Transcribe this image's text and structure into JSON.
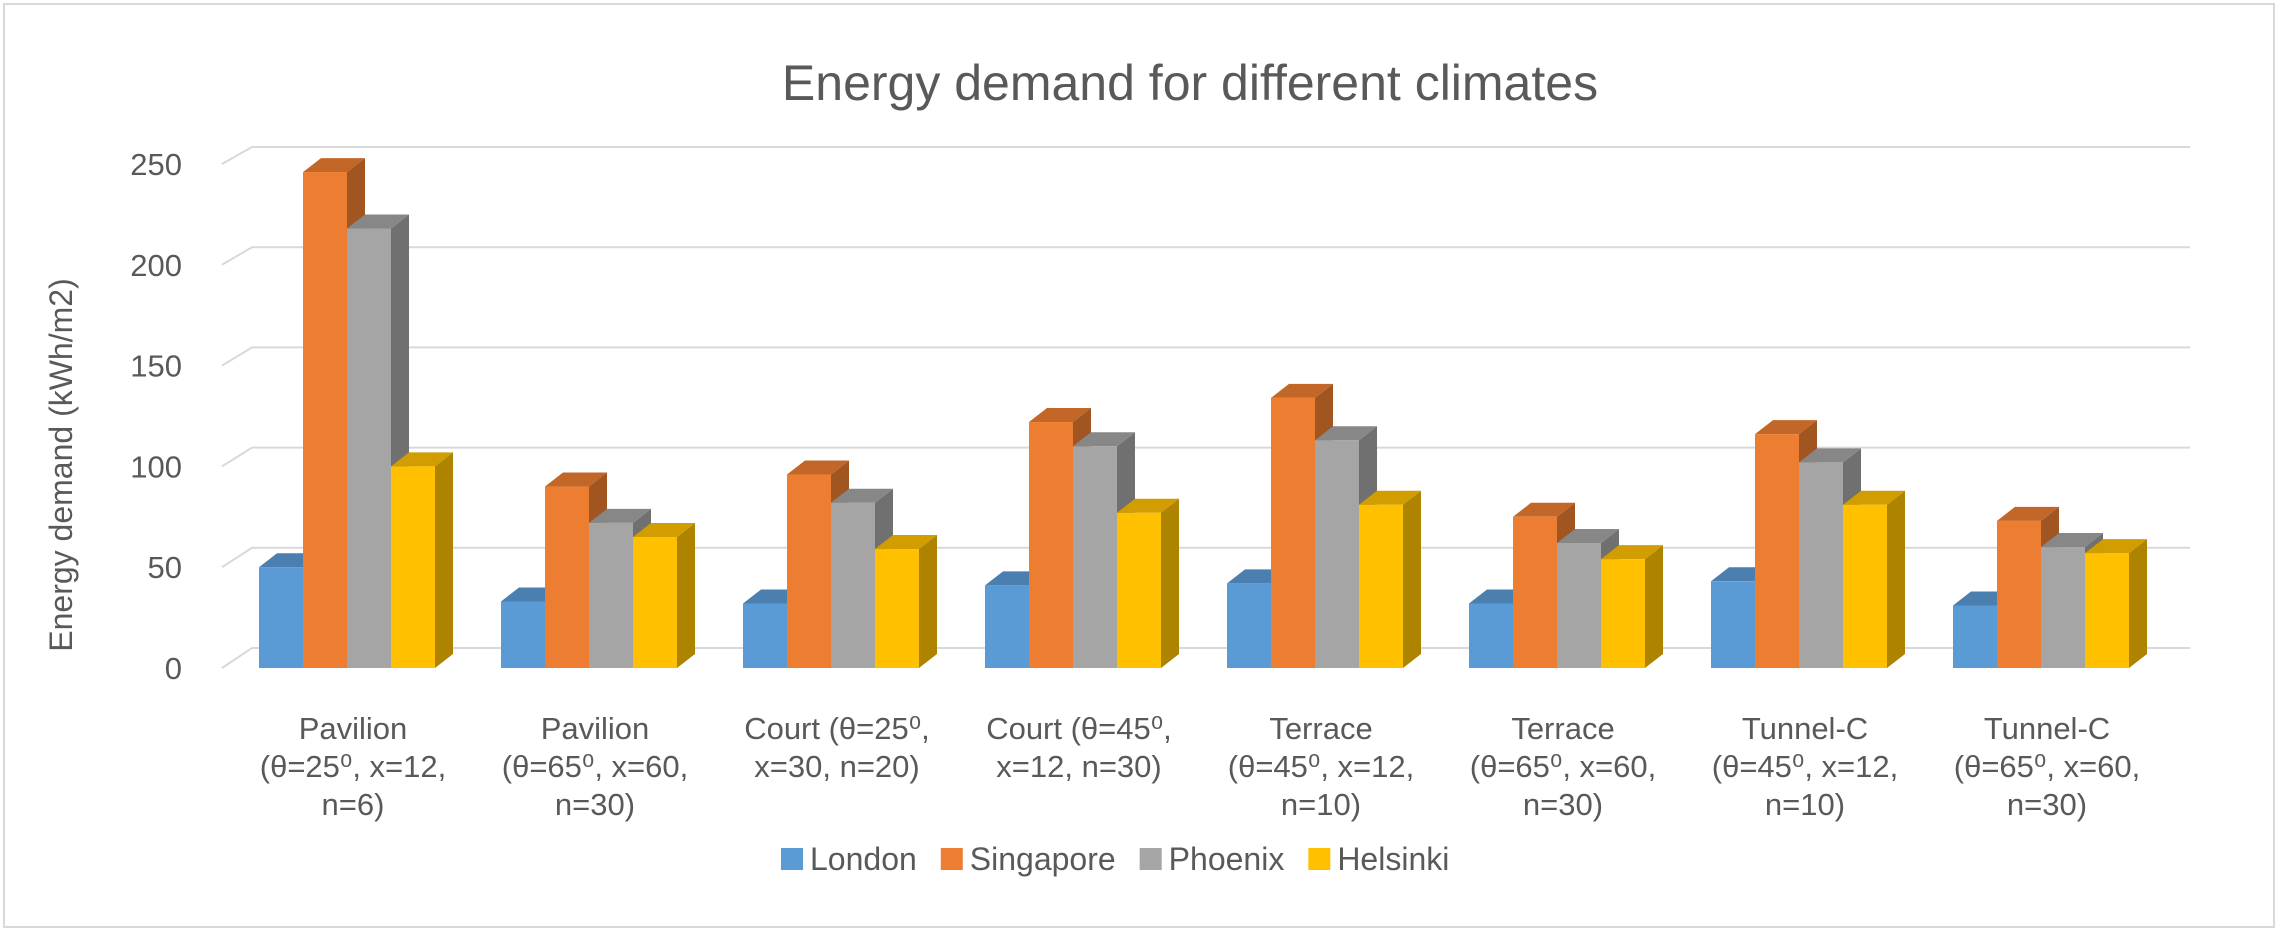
{
  "chart_data": {
    "type": "bar",
    "style": "3d-clustered-column",
    "title": "Energy demand for different climates",
    "xlabel": "",
    "ylabel": "Energy demand (kWh/m2)",
    "ylim": [
      0,
      250
    ],
    "yticks": [
      0,
      50,
      100,
      150,
      200,
      250
    ],
    "grid": true,
    "legend_position": "bottom",
    "categories": [
      [
        "Pavilion",
        "(θ=25⁰, x=12,",
        "n=6)"
      ],
      [
        "Pavilion",
        "(θ=65⁰, x=60,",
        "n=30)"
      ],
      [
        "Court (θ=25⁰,",
        "x=30, n=20)"
      ],
      [
        "Court (θ=45⁰,",
        "x=12, n=30)"
      ],
      [
        "Terrace",
        "(θ=45⁰, x=12,",
        "n=10)"
      ],
      [
        "Terrace",
        "(θ=65⁰, x=60,",
        "n=30)"
      ],
      [
        "Tunnel-C",
        "(θ=45⁰, x=12,",
        "n=10)"
      ],
      [
        "Tunnel-C",
        "(θ=65⁰, x=60,",
        "n=30)"
      ]
    ],
    "series": [
      {
        "name": "London",
        "color": "#5b9bd5",
        "values": [
          50,
          33,
          32,
          41,
          42,
          32,
          43,
          31
        ]
      },
      {
        "name": "Singapore",
        "color": "#ed7d31",
        "values": [
          246,
          90,
          96,
          122,
          134,
          75,
          116,
          73
        ]
      },
      {
        "name": "Phoenix",
        "color": "#a5a5a5",
        "values": [
          218,
          72,
          82,
          110,
          113,
          62,
          102,
          60
        ]
      },
      {
        "name": "Helsinki",
        "color": "#ffc000",
        "values": [
          100,
          65,
          59,
          77,
          81,
          54,
          81,
          57
        ]
      }
    ]
  }
}
